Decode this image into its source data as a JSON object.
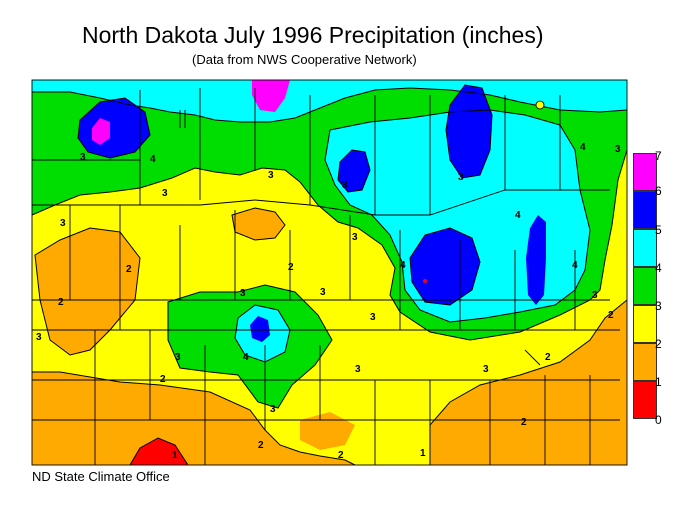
{
  "title": "North Dakota July 1996 Precipitation (inches)",
  "subtitle": "(Data from NWS Cooperative Network)",
  "credit": "ND State Climate Office",
  "legend": {
    "labels": [
      "7",
      "6",
      "5",
      "4",
      "3",
      "2",
      "1",
      "0"
    ],
    "colors": [
      "#ff00ff",
      "#0000ff",
      "#00ffff",
      "#00dd00",
      "#ffff00",
      "#ffaa00",
      "#ff0000"
    ]
  },
  "contour_labels": [
    "4",
    "3",
    "2",
    "1"
  ]
}
